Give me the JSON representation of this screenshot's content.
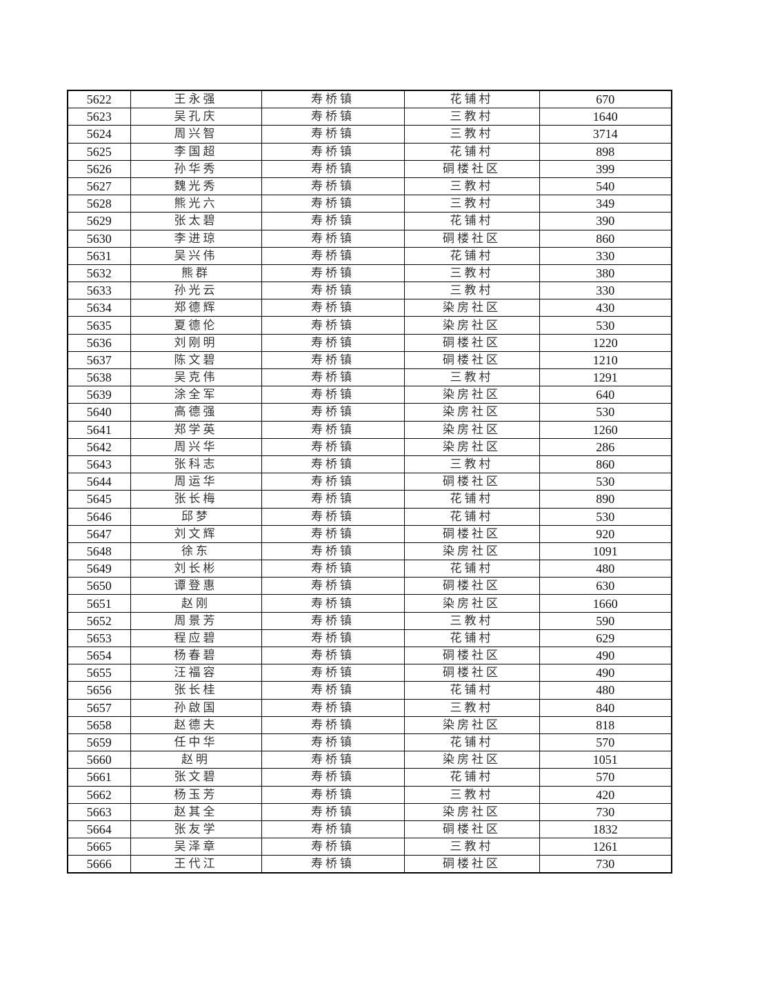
{
  "table": {
    "rows": [
      [
        "5622",
        "王永强",
        "寿桥镇",
        "花铺村",
        "670"
      ],
      [
        "5623",
        "吴孔庆",
        "寿桥镇",
        "三教村",
        "1640"
      ],
      [
        "5624",
        "周兴智",
        "寿桥镇",
        "三教村",
        "3714"
      ],
      [
        "5625",
        "李国超",
        "寿桥镇",
        "花铺村",
        "898"
      ],
      [
        "5626",
        "孙华秀",
        "寿桥镇",
        "硐楼社区",
        "399"
      ],
      [
        "5627",
        "魏光秀",
        "寿桥镇",
        "三教村",
        "540"
      ],
      [
        "5628",
        "熊光六",
        "寿桥镇",
        "三教村",
        "349"
      ],
      [
        "5629",
        "张太碧",
        "寿桥镇",
        "花铺村",
        "390"
      ],
      [
        "5630",
        "李进琼",
        "寿桥镇",
        "硐楼社区",
        "860"
      ],
      [
        "5631",
        "吴兴伟",
        "寿桥镇",
        "花铺村",
        "330"
      ],
      [
        "5632",
        "熊群",
        "寿桥镇",
        "三教村",
        "380"
      ],
      [
        "5633",
        "孙光云",
        "寿桥镇",
        "三教村",
        "330"
      ],
      [
        "5634",
        "郑德辉",
        "寿桥镇",
        "染房社区",
        "430"
      ],
      [
        "5635",
        "夏德伦",
        "寿桥镇",
        "染房社区",
        "530"
      ],
      [
        "5636",
        "刘刚明",
        "寿桥镇",
        "硐楼社区",
        "1220"
      ],
      [
        "5637",
        "陈文碧",
        "寿桥镇",
        "硐楼社区",
        "1210"
      ],
      [
        "5638",
        "吴克伟",
        "寿桥镇",
        "三教村",
        "1291"
      ],
      [
        "5639",
        "涂全军",
        "寿桥镇",
        "染房社区",
        "640"
      ],
      [
        "5640",
        "高德强",
        "寿桥镇",
        "染房社区",
        "530"
      ],
      [
        "5641",
        "郑学英",
        "寿桥镇",
        "染房社区",
        "1260"
      ],
      [
        "5642",
        "周兴华",
        "寿桥镇",
        "染房社区",
        "286"
      ],
      [
        "5643",
        "张科志",
        "寿桥镇",
        "三教村",
        "860"
      ],
      [
        "5644",
        "周运华",
        "寿桥镇",
        "硐楼社区",
        "530"
      ],
      [
        "5645",
        "张长梅",
        "寿桥镇",
        "花铺村",
        "890"
      ],
      [
        "5646",
        "邱梦",
        "寿桥镇",
        "花铺村",
        "530"
      ],
      [
        "5647",
        "刘文辉",
        "寿桥镇",
        "硐楼社区",
        "920"
      ],
      [
        "5648",
        "徐东",
        "寿桥镇",
        "染房社区",
        "1091"
      ],
      [
        "5649",
        "刘长彬",
        "寿桥镇",
        "花铺村",
        "480"
      ],
      [
        "5650",
        "谭登惠",
        "寿桥镇",
        "硐楼社区",
        "630"
      ],
      [
        "5651",
        "赵刚",
        "寿桥镇",
        "染房社区",
        "1660"
      ],
      [
        "5652",
        "周景芳",
        "寿桥镇",
        "三教村",
        "590"
      ],
      [
        "5653",
        "程应碧",
        "寿桥镇",
        "花铺村",
        "629"
      ],
      [
        "5654",
        "杨春碧",
        "寿桥镇",
        "硐楼社区",
        "490"
      ],
      [
        "5655",
        "汪福容",
        "寿桥镇",
        "硐楼社区",
        "490"
      ],
      [
        "5656",
        "张长桂",
        "寿桥镇",
        "花铺村",
        "480"
      ],
      [
        "5657",
        "孙啟国",
        "寿桥镇",
        "三教村",
        "840"
      ],
      [
        "5658",
        "赵德夫",
        "寿桥镇",
        "染房社区",
        "818"
      ],
      [
        "5659",
        "任中华",
        "寿桥镇",
        "花铺村",
        "570"
      ],
      [
        "5660",
        "赵明",
        "寿桥镇",
        "染房社区",
        "1051"
      ],
      [
        "5661",
        "张文碧",
        "寿桥镇",
        "花铺村",
        "570"
      ],
      [
        "5662",
        "杨玉芳",
        "寿桥镇",
        "三教村",
        "420"
      ],
      [
        "5663",
        "赵其全",
        "寿桥镇",
        "染房社区",
        "730"
      ],
      [
        "5664",
        "张友学",
        "寿桥镇",
        "硐楼社区",
        "1832"
      ],
      [
        "5665",
        "吴泽章",
        "寿桥镇",
        "三教村",
        "1261"
      ],
      [
        "5666",
        "王代江",
        "寿桥镇",
        "硐楼社区",
        "730"
      ]
    ]
  }
}
